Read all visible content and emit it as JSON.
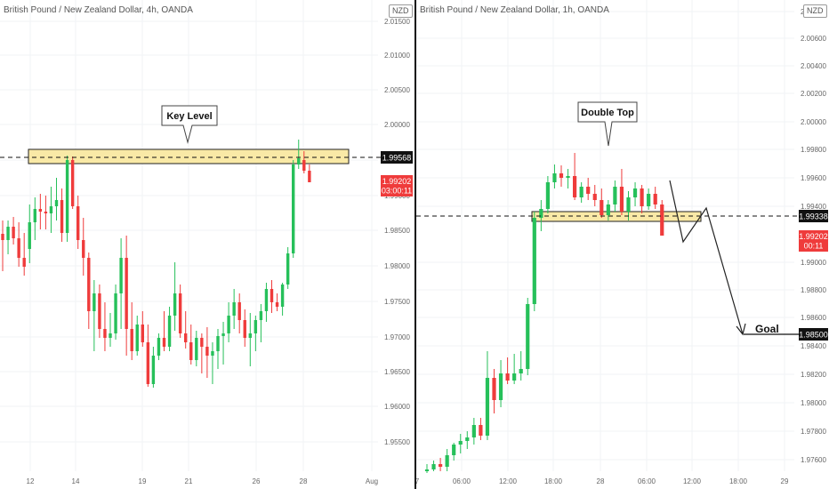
{
  "left_chart": {
    "title": "British Pound / New Zealand Dollar, 4h, OANDA",
    "currency": "NZD",
    "price_ticks": [
      "2.01500",
      "2.01000",
      "2.00500",
      "2.00000",
      "1.99500",
      "1.99000",
      "1.98500",
      "1.98000",
      "1.97500",
      "1.97000",
      "1.96500",
      "1.96000",
      "1.95500"
    ],
    "time_ticks": [
      "12",
      "14",
      "19",
      "21",
      "26",
      "28",
      "Aug"
    ],
    "level_price": "1.99568",
    "current_price": "1.99202",
    "countdown": "03:00:11",
    "callout": "Key Level"
  },
  "right_chart": {
    "title": "British Pound / New Zealand Dollar, 1h, OANDA",
    "currency": "NZD",
    "price_ticks": [
      "2.00800",
      "2.00600",
      "2.00400",
      "2.00200",
      "2.00000",
      "1.99800",
      "1.99600",
      "1.99400",
      "1.99000",
      "1.98800",
      "1.98600",
      "1.98400",
      "1.98200",
      "1.98000",
      "1.97800",
      "1.97600"
    ],
    "time_ticks": [
      "7",
      "06:00",
      "12:00",
      "18:00",
      "28",
      "06:00",
      "12:00",
      "18:00",
      "29"
    ],
    "level_price": "1.99338",
    "current_price": "1.99202",
    "countdown": "00:11",
    "goal_price": "1.98500",
    "callout": "Double Top",
    "goal_label": "Goal"
  },
  "colors": {
    "up": "#26c05a",
    "down": "#ef3b3b",
    "zone_fill": "#f9e9a6",
    "level_tag_bg": "#111111",
    "price_tag_bg": "#ef3b3b"
  }
}
